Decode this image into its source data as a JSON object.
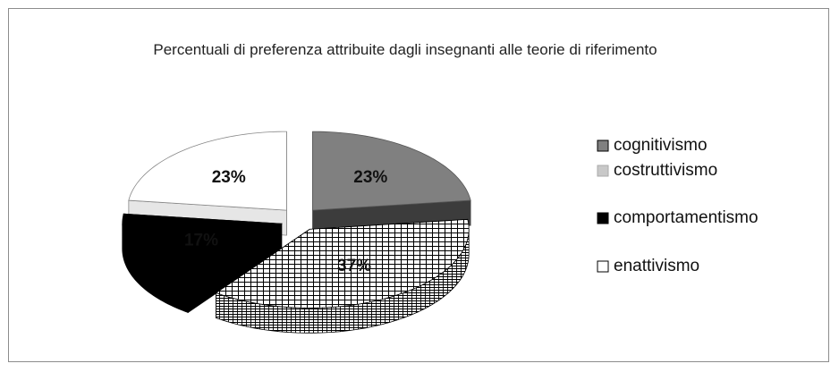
{
  "chart_data": {
    "type": "pie",
    "title": "Percentuali di preferenza attribuite dagli insegnanti alle teorie di riferimento",
    "categories": [
      "cognitivismo",
      "costruttivismo",
      "comportamentismo",
      "enattivismo"
    ],
    "values": [
      23,
      37,
      17,
      23
    ],
    "value_labels": [
      "23%",
      "37%",
      "17%",
      "23%"
    ],
    "colors": [
      "#808080",
      "#ffffff",
      "#000000",
      "#ffffff"
    ],
    "legend": "right"
  }
}
